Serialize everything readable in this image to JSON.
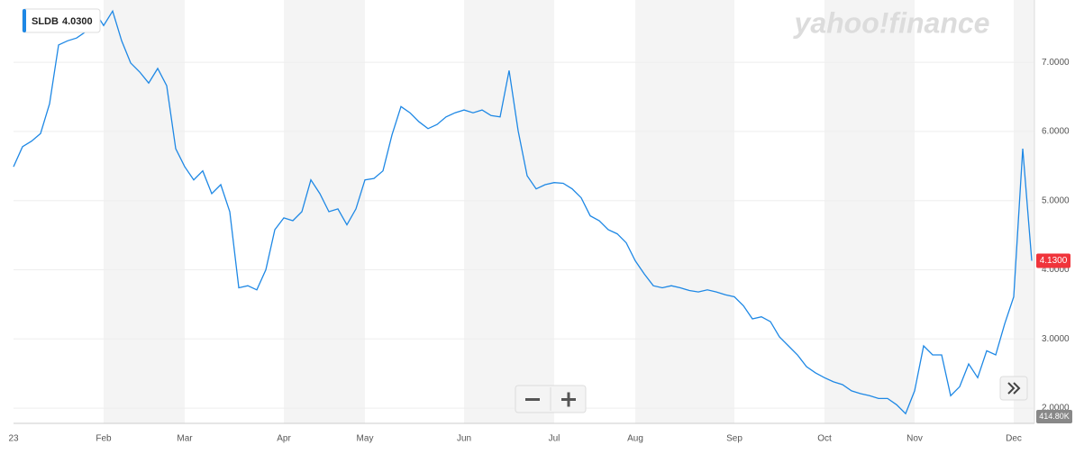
{
  "chart_data": {
    "type": "line",
    "logo": "yahoo!finance",
    "legend_value": "4.0300",
    "price_tag": "4.1300",
    "volume_label": "414.80K",
    "categories": [
      "23",
      null,
      null,
      null,
      null,
      null,
      null,
      null,
      null,
      null,
      "Feb",
      null,
      null,
      null,
      null,
      null,
      null,
      null,
      null,
      "Mar",
      null,
      null,
      null,
      null,
      null,
      null,
      null,
      null,
      null,
      null,
      "Apr",
      null,
      null,
      null,
      null,
      null,
      null,
      null,
      null,
      "May",
      null,
      null,
      null,
      null,
      null,
      null,
      null,
      null,
      null,
      null,
      "Jun",
      null,
      null,
      null,
      null,
      null,
      null,
      null,
      null,
      null,
      "Jul",
      null,
      null,
      null,
      null,
      null,
      null,
      null,
      null,
      "Aug",
      null,
      null,
      null,
      null,
      null,
      null,
      null,
      null,
      null,
      null,
      "Sep",
      null,
      null,
      null,
      null,
      null,
      null,
      null,
      null,
      null,
      "Oct",
      null,
      null,
      null,
      null,
      null,
      null,
      null,
      null,
      null,
      "Nov",
      null,
      null,
      null,
      null,
      null,
      null,
      null,
      null,
      null,
      null,
      "Dec",
      null,
      null
    ],
    "series": [
      {
        "name": "SLDB",
        "color": "#1e88e5",
        "values": [
          5.49,
          5.78,
          5.86,
          5.97,
          6.4,
          7.25,
          7.31,
          7.35,
          7.44,
          7.74,
          7.53,
          7.74,
          7.31,
          6.99,
          6.86,
          6.7,
          6.91,
          6.66,
          5.75,
          5.49,
          5.3,
          5.43,
          5.1,
          5.23,
          4.84,
          3.74,
          3.77,
          3.71,
          4.0,
          4.58,
          4.75,
          4.71,
          4.84,
          5.3,
          5.1,
          4.84,
          4.88,
          4.65,
          4.88,
          5.3,
          5.32,
          5.43,
          5.95,
          6.36,
          6.27,
          6.14,
          6.04,
          6.1,
          6.21,
          6.27,
          6.31,
          6.27,
          6.31,
          6.23,
          6.21,
          6.88,
          6.01,
          5.36,
          5.17,
          5.23,
          5.26,
          5.25,
          5.17,
          5.04,
          4.78,
          4.71,
          4.58,
          4.52,
          4.39,
          4.13,
          3.94,
          3.77,
          3.74,
          3.77,
          3.74,
          3.7,
          3.68,
          3.71,
          3.68,
          3.64,
          3.61,
          3.48,
          3.29,
          3.32,
          3.25,
          3.03,
          2.9,
          2.77,
          2.6,
          2.51,
          2.44,
          2.38,
          2.34,
          2.25,
          2.21,
          2.18,
          2.14,
          2.14,
          2.05,
          1.92,
          2.25,
          2.9,
          2.77,
          2.77,
          2.18,
          2.31,
          2.64,
          2.44,
          2.83,
          2.77,
          3.22,
          3.61,
          5.75,
          4.13
        ]
      }
    ],
    "ylim": [
      1.78,
      7.9
    ],
    "yticks": [
      {
        "value": 2,
        "label": "2.0000"
      },
      {
        "value": 3,
        "label": "3.0000"
      },
      {
        "value": 4,
        "label": "4.0000"
      },
      {
        "value": 5,
        "label": "5.0000"
      },
      {
        "value": 6,
        "label": "6.0000"
      },
      {
        "value": 7,
        "label": "7.0000"
      }
    ],
    "grid": true
  }
}
